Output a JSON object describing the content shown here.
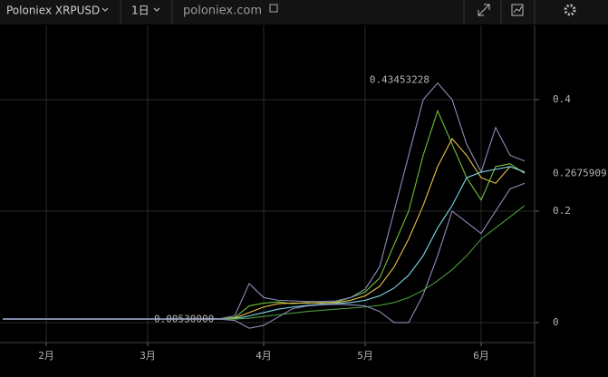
{
  "toolbar": {
    "symbol": "Poloniex XRPUSD",
    "interval": "1日",
    "site": "poloniex.com"
  },
  "chart_data": {
    "type": "line",
    "categories": [
      null,
      null,
      null,
      "2月",
      null,
      null,
      null,
      null,
      null,
      null,
      "3月",
      null,
      null,
      null,
      null,
      null,
      null,
      null,
      "4月",
      null,
      null,
      null,
      null,
      null,
      null,
      "5月",
      null,
      null,
      null,
      null,
      null,
      null,
      null,
      "6月",
      null,
      null,
      null
    ],
    "series": [
      {
        "color": "#6fbf3a",
        "values": [
          0.0065,
          0.0063,
          0.0062,
          0.0064,
          0.0063,
          0.0062,
          0.0063,
          0.0064,
          0.0062,
          0.0063,
          0.0064,
          0.0063,
          0.0062,
          0.0065,
          0.0068,
          0.0075,
          0.009,
          0.03,
          0.035,
          0.037,
          0.034,
          0.036,
          0.035,
          0.037,
          0.045,
          0.055,
          0.08,
          0.14,
          0.2,
          0.3,
          0.38,
          0.32,
          0.26,
          0.22,
          0.28,
          0.285,
          0.2676
        ]
      },
      {
        "color": "#e8c34a",
        "values": [
          0.0064,
          0.0064,
          0.0064,
          0.0064,
          0.0064,
          0.0064,
          0.0064,
          0.0064,
          0.0064,
          0.0064,
          0.0064,
          0.0064,
          0.0064,
          0.0064,
          0.0064,
          0.0064,
          0.008,
          0.018,
          0.028,
          0.034,
          0.035,
          0.035,
          0.036,
          0.036,
          0.04,
          0.048,
          0.065,
          0.1,
          0.15,
          0.21,
          0.28,
          0.33,
          0.3,
          0.26,
          0.25,
          0.28,
          0.27
        ]
      },
      {
        "color": "#7fd6e8",
        "values": [
          0.0064,
          0.0064,
          0.0064,
          0.0064,
          0.0064,
          0.0064,
          0.0064,
          0.0064,
          0.0064,
          0.0064,
          0.0064,
          0.0064,
          0.0064,
          0.0064,
          0.0064,
          0.0064,
          0.007,
          0.012,
          0.018,
          0.024,
          0.028,
          0.031,
          0.033,
          0.034,
          0.036,
          0.04,
          0.048,
          0.062,
          0.085,
          0.12,
          0.17,
          0.21,
          0.26,
          0.27,
          0.275,
          0.28,
          0.27
        ]
      },
      {
        "color": "#4c9a3c",
        "values": [
          0.0063,
          0.0063,
          0.0063,
          0.0063,
          0.0063,
          0.0063,
          0.0063,
          0.0063,
          0.0063,
          0.0063,
          0.0063,
          0.0063,
          0.0063,
          0.0063,
          0.0063,
          0.0063,
          0.0063,
          0.008,
          0.011,
          0.014,
          0.017,
          0.02,
          0.022,
          0.024,
          0.026,
          0.028,
          0.031,
          0.036,
          0.045,
          0.058,
          0.075,
          0.095,
          0.12,
          0.15,
          0.17,
          0.19,
          0.21
        ]
      },
      {
        "color": "#8a8fb8",
        "values": [
          0.007,
          0.007,
          0.007,
          0.007,
          0.007,
          0.007,
          0.007,
          0.007,
          0.007,
          0.007,
          0.007,
          0.007,
          0.007,
          0.007,
          0.007,
          0.007,
          0.012,
          0.07,
          0.045,
          0.04,
          0.039,
          0.038,
          0.038,
          0.039,
          0.045,
          0.06,
          0.1,
          0.2,
          0.3,
          0.4,
          0.43,
          0.4,
          0.32,
          0.27,
          0.35,
          0.3,
          0.29
        ]
      },
      {
        "color": "#8a8fb8",
        "values": [
          0.006,
          0.006,
          0.006,
          0.006,
          0.006,
          0.006,
          0.006,
          0.006,
          0.006,
          0.006,
          0.006,
          0.006,
          0.006,
          0.006,
          0.006,
          0.006,
          0.004,
          -0.01,
          -0.005,
          0.01,
          0.025,
          0.03,
          0.032,
          0.033,
          0.032,
          0.03,
          0.02,
          0.0,
          0.0,
          0.05,
          0.12,
          0.2,
          0.18,
          0.16,
          0.2,
          0.24,
          0.25
        ]
      }
    ],
    "ylim": [
      -0.0358,
      0.5333
    ],
    "yticks": [
      0,
      0.2,
      0.4
    ],
    "grid": true,
    "high": 0.43453228,
    "low": {
      "value": 0.0053,
      "label": "0.00530000"
    },
    "last": 0.2675909
  }
}
